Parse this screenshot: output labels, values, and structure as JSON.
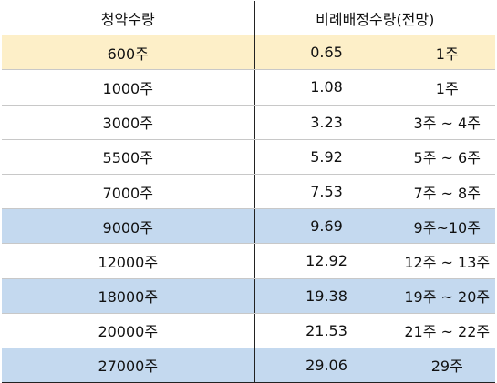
{
  "table": {
    "headers": {
      "subscription_qty": "청약수량",
      "allocation_qty": "비례배정수량(전망)"
    },
    "colors": {
      "highlight_yellow": "#fdefc8",
      "highlight_blue": "#c4d9ef",
      "plain": "#ffffff"
    },
    "rows": [
      {
        "qty": "600주",
        "rate": "0.65",
        "expect": "1주",
        "highlight": "yellow"
      },
      {
        "qty": "1000주",
        "rate": "1.08",
        "expect": "1주",
        "highlight": "none"
      },
      {
        "qty": "3000주",
        "rate": "3.23",
        "expect": "3주 ~ 4주",
        "highlight": "none"
      },
      {
        "qty": "5500주",
        "rate": "5.92",
        "expect": "5주 ~ 6주",
        "highlight": "none"
      },
      {
        "qty": "7000주",
        "rate": "7.53",
        "expect": "7주 ~ 8주",
        "highlight": "none"
      },
      {
        "qty": "9000주",
        "rate": "9.69",
        "expect": "9주~10주",
        "highlight": "blue"
      },
      {
        "qty": "12000주",
        "rate": "12.92",
        "expect": "12주 ~ 13주",
        "highlight": "none"
      },
      {
        "qty": "18000주",
        "rate": "19.38",
        "expect": "19주 ~ 20주",
        "highlight": "blue"
      },
      {
        "qty": "20000주",
        "rate": "21.53",
        "expect": "21주 ~ 22주",
        "highlight": "none"
      },
      {
        "qty": "27000주",
        "rate": "29.06",
        "expect": "29주",
        "highlight": "blue"
      }
    ]
  }
}
